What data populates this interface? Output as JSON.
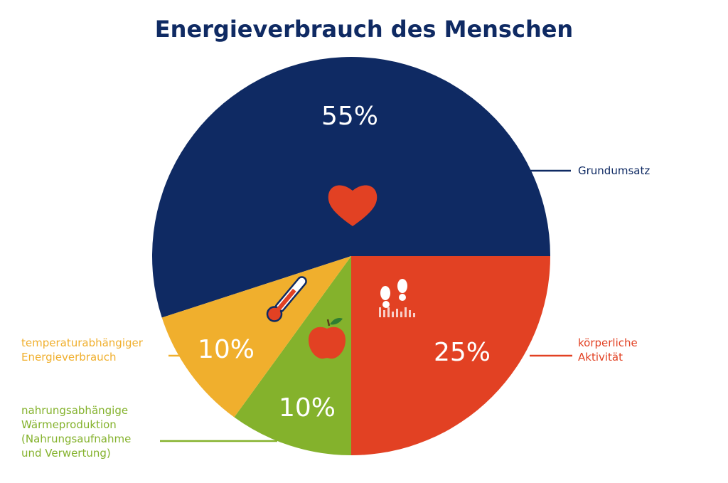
{
  "chart_data": {
    "type": "pie",
    "title": "Energieverbrauch des Menschen",
    "slices": [
      {
        "label": "Grundumsatz",
        "label_lines": [
          "Grundumsatz"
        ],
        "value": 55,
        "value_label": "55%",
        "color": "#0f2a63",
        "icon": "heart-icon"
      },
      {
        "label": "körperliche Aktivität",
        "label_lines": [
          "körperliche",
          "Aktivität"
        ],
        "value": 25,
        "value_label": "25%",
        "color": "#e24123",
        "icon": "footprints-icon"
      },
      {
        "label": "nahrungsabhängige Wärmeproduktion (Nahrungsaufnahme und Verwertung)",
        "label_lines": [
          "nahrungsabhängige",
          "Wärmeproduktion",
          "(Nahrungsaufnahme",
          "und Verwertung)"
        ],
        "value": 10,
        "value_label": "10%",
        "color": "#84b22c",
        "icon": "apple-icon"
      },
      {
        "label": "temperaturabhängiger Energieverbrauch",
        "label_lines": [
          "temperaturabhängiger",
          "Energieverbrauch"
        ],
        "value": 10,
        "value_label": "10%",
        "color": "#f0af2d",
        "icon": "thermometer-icon"
      }
    ],
    "title_color": "#0f2a63"
  }
}
